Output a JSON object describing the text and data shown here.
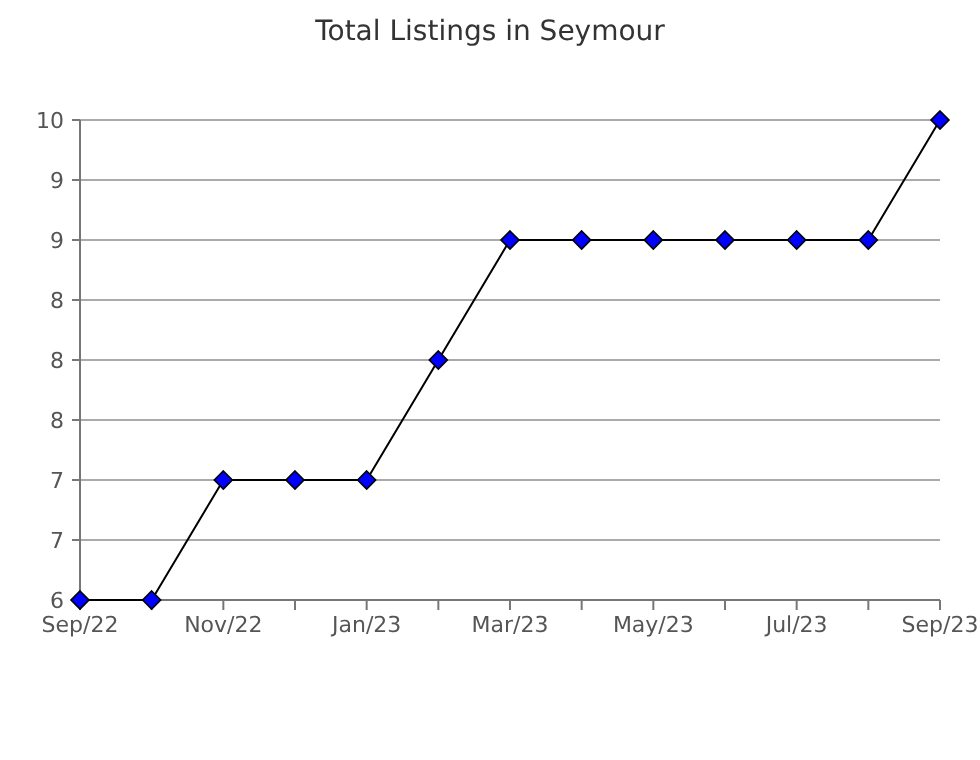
{
  "chart_data": {
    "type": "line",
    "title": "Total Listings in Seymour",
    "categories": [
      "Sep/22",
      null,
      "Nov/22",
      null,
      "Jan/23",
      null,
      "Mar/23",
      null,
      "May/23",
      null,
      "Jul/23",
      null,
      "Sep/23"
    ],
    "series": [
      {
        "color": "#0000ff",
        "values": [
          6,
          6,
          7,
          7,
          7,
          8,
          9,
          9,
          9,
          9,
          9,
          9,
          10
        ]
      }
    ],
    "ylim": [
      6,
      10
    ],
    "yticks": [
      6,
      {
        "value": 6.5,
        "label": "7"
      },
      7,
      {
        "value": 7.5,
        "label": "8"
      },
      8,
      {
        "value": 8.5,
        "label": "8"
      },
      9,
      {
        "value": 9.5,
        "label": "9"
      },
      10
    ],
    "grid": "y",
    "marker": "diamond",
    "line_style": "solid"
  }
}
